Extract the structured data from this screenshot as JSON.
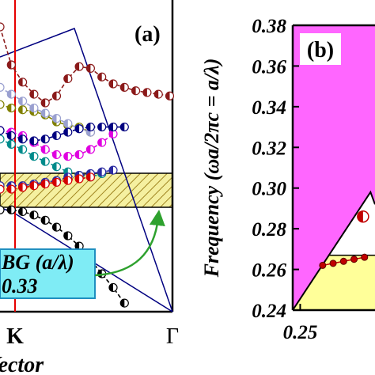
{
  "chart_data": [
    {
      "id": "a",
      "type": "line",
      "panel_label": "(a)",
      "xlabel": "Vector",
      "x_ticks": [
        "K",
        "Γ"
      ],
      "legend": {
        "label": "BG (a/λ)",
        "value": "0.33",
        "position": "bottom-left"
      },
      "colors": {
        "outline": "#000000",
        "red_line": "#e60000",
        "blue_line": "#000080",
        "gap_fill": "#f5f0a0",
        "legend_fill": "#7fecf5",
        "legend_border": "#1f8fc0",
        "arrow": "#2ea12e"
      },
      "series": [
        {
          "color": "#8b1a1a",
          "y": [
            0.405,
            0.383,
            0.373,
            0.366,
            0.361,
            0.365,
            0.375,
            0.382,
            0.381,
            0.376,
            0.372,
            0.37,
            0.368,
            0.367,
            0.366,
            0.365
          ]
        },
        {
          "color": "#808000",
          "y": [
            0.36,
            0.358,
            0.357,
            0.356,
            0.354,
            0.35,
            0.348,
            0.347,
            0.344
          ]
        },
        {
          "color": "#9aa0d0",
          "y": [
            0.37,
            0.366,
            0.362,
            0.358,
            0.355,
            0.352,
            0.349,
            0.346,
            0.344
          ]
        },
        {
          "color": "#e000e0",
          "y": [
            0.345,
            0.344,
            0.342,
            0.338,
            0.334,
            0.331,
            0.33,
            0.331,
            0.334,
            0.338,
            0.343
          ]
        },
        {
          "color": "#000080",
          "y": [
            0.345,
            0.342,
            0.34,
            0.339,
            0.34,
            0.342,
            0.344,
            0.346,
            0.347,
            0.347,
            0.347,
            0.347
          ]
        },
        {
          "color": "#008b8b",
          "y": [
            0.34,
            0.337,
            0.334,
            0.33,
            0.327,
            0.324,
            0.321,
            0.319,
            0.318,
            0.32
          ]
        },
        {
          "color": "#2a2aa0",
          "y": [
            0.313,
            0.313,
            0.313,
            0.314,
            0.315,
            0.316,
            0.318,
            0.319,
            0.32,
            0.321,
            0.322
          ]
        },
        {
          "color": "#d40000",
          "y": [
            0.311,
            0.311,
            0.312,
            0.313,
            0.314,
            0.315,
            0.316,
            0.317,
            0.318
          ]
        },
        {
          "color": "#000000",
          "y": [
            0.299,
            0.299,
            0.298,
            0.296,
            0.293,
            0.289,
            0.284,
            0.278,
            0.27,
            0.262,
            0.254,
            0.245
          ]
        }
      ]
    },
    {
      "id": "b",
      "type": "area",
      "panel_label": "(b)",
      "ylabel": "Frequency (ωa/2πc = a/λ)",
      "ylim": [
        0.24,
        0.38
      ],
      "y_ticks": [
        "0.24",
        "0.26",
        "0.28",
        "0.30",
        "0.32",
        "0.34",
        "0.36",
        "0.38"
      ],
      "x_ticks": [
        "0.25"
      ],
      "x_tick_values": [
        0.25
      ],
      "xlim": [
        0.245,
        0.3
      ],
      "colors": {
        "pink": "#ff66ff",
        "yellow": "#ffff99",
        "marker": "#c00000"
      },
      "band_points": [
        {
          "x": 0.265,
          "y": 0.262
        },
        {
          "x": 0.272,
          "y": 0.263
        },
        {
          "x": 0.279,
          "y": 0.264
        },
        {
          "x": 0.286,
          "y": 0.265
        },
        {
          "x": 0.293,
          "y": 0.266
        }
      ],
      "marker_point": {
        "x": 0.292,
        "y": 0.286
      }
    }
  ]
}
